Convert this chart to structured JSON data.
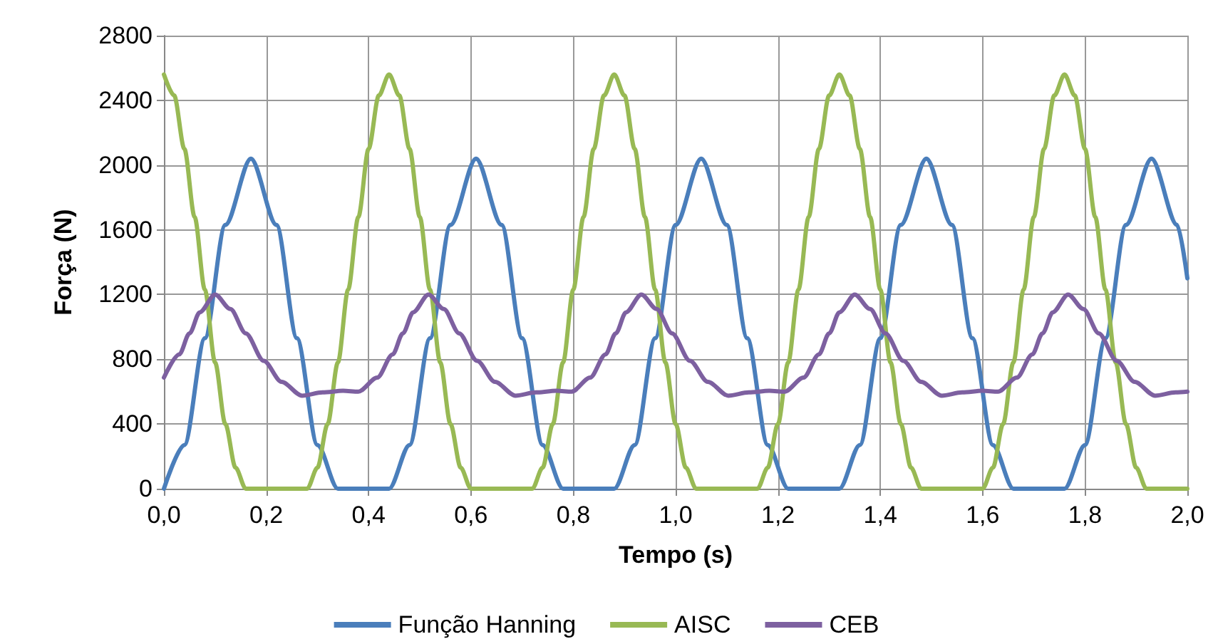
{
  "chart_data": {
    "type": "line",
    "xlabel": "Tempo (s)",
    "ylabel": "Força (N)",
    "xlim": [
      0,
      2
    ],
    "xticks": [
      {
        "value": 0,
        "label": "0,0"
      },
      {
        "value": 0.2,
        "label": "0,2"
      },
      {
        "value": 0.4,
        "label": "0,4"
      },
      {
        "value": 0.6,
        "label": "0,6"
      },
      {
        "value": 0.8,
        "label": "0,8"
      },
      {
        "value": 1,
        "label": "1,0"
      },
      {
        "value": 1.2,
        "label": "1,2"
      },
      {
        "value": 1.4,
        "label": "1,4"
      },
      {
        "value": 1.6,
        "label": "1,6"
      },
      {
        "value": 1.8,
        "label": "1,8"
      },
      {
        "value": 2,
        "label": "2,0"
      }
    ],
    "ylim": [
      0,
      2800
    ],
    "yticks": [
      0,
      400,
      800,
      1200,
      1600,
      2000,
      2400,
      2800
    ],
    "grid": true,
    "legend": "bottom",
    "marker": "none",
    "line_style": "solid",
    "series": [
      {
        "name": "Função Hanning",
        "color": "#4a7ebb",
        "x": [
          0,
          0.04,
          0.08,
          0.12,
          0.17,
          0.22,
          0.26,
          0.3,
          0.34,
          0.44,
          0.48,
          0.52,
          0.56,
          0.61,
          0.66,
          0.7,
          0.74,
          0.78,
          0.88,
          0.92,
          0.96,
          1,
          1.05,
          1.1,
          1.14,
          1.18,
          1.22,
          1.32,
          1.36,
          1.4,
          1.44,
          1.49,
          1.54,
          1.58,
          1.62,
          1.66,
          1.76,
          1.8,
          1.84,
          1.88,
          1.93,
          1.98,
          2
        ],
        "values": [
          0,
          270,
          930,
          1630,
          2040,
          1630,
          930,
          270,
          0,
          0,
          270,
          930,
          1630,
          2040,
          1630,
          930,
          270,
          0,
          0,
          270,
          930,
          1630,
          2040,
          1630,
          930,
          270,
          0,
          0,
          270,
          930,
          1630,
          2040,
          1630,
          930,
          270,
          0,
          0,
          270,
          930,
          1630,
          2040,
          1630,
          1300
        ]
      },
      {
        "name": "AISC",
        "color": "#98b954",
        "x": [
          0,
          0.02,
          0.04,
          0.06,
          0.08,
          0.1,
          0.12,
          0.14,
          0.16,
          0.28,
          0.3,
          0.32,
          0.34,
          0.36,
          0.38,
          0.4,
          0.42,
          0.44,
          0.46,
          0.48,
          0.5,
          0.52,
          0.54,
          0.56,
          0.58,
          0.6,
          0.72,
          0.74,
          0.76,
          0.78,
          0.8,
          0.82,
          0.84,
          0.86,
          0.88,
          0.9,
          0.92,
          0.94,
          0.96,
          0.98,
          1,
          1.02,
          1.04,
          1.16,
          1.18,
          1.2,
          1.22,
          1.24,
          1.26,
          1.28,
          1.3,
          1.32,
          1.34,
          1.36,
          1.38,
          1.4,
          1.42,
          1.44,
          1.46,
          1.48,
          1.6,
          1.62,
          1.64,
          1.66,
          1.68,
          1.7,
          1.72,
          1.74,
          1.76,
          1.78,
          1.8,
          1.82,
          1.84,
          1.86,
          1.88,
          1.9,
          1.92,
          2
        ],
        "values": [
          2560,
          2430,
          2100,
          1680,
          1230,
          780,
          400,
          130,
          0,
          0,
          130,
          400,
          780,
          1230,
          1680,
          2100,
          2430,
          2560,
          2430,
          2100,
          1680,
          1230,
          780,
          400,
          130,
          0,
          0,
          130,
          400,
          780,
          1230,
          1680,
          2100,
          2430,
          2560,
          2430,
          2100,
          1680,
          1230,
          780,
          400,
          130,
          0,
          0,
          130,
          400,
          780,
          1230,
          1680,
          2100,
          2430,
          2560,
          2430,
          2100,
          1680,
          1230,
          780,
          400,
          130,
          0,
          0,
          130,
          400,
          780,
          1230,
          1680,
          2100,
          2430,
          2560,
          2430,
          2100,
          1680,
          1230,
          780,
          400,
          130,
          0,
          0
        ]
      },
      {
        "name": "CEB",
        "color": "#7d60a0",
        "x": [
          0,
          0.03,
          0.05,
          0.07,
          0.1,
          0.13,
          0.16,
          0.195,
          0.23,
          0.27,
          0.31,
          0.35,
          0.38,
          0.417,
          0.447,
          0.467,
          0.487,
          0.517,
          0.547,
          0.577,
          0.612,
          0.647,
          0.687,
          0.727,
          0.767,
          0.797,
          0.833,
          0.863,
          0.883,
          0.903,
          0.933,
          0.963,
          0.993,
          1.028,
          1.063,
          1.103,
          1.143,
          1.183,
          1.213,
          1.25,
          1.28,
          1.3,
          1.32,
          1.35,
          1.38,
          1.41,
          1.445,
          1.48,
          1.52,
          1.56,
          1.6,
          1.63,
          1.667,
          1.697,
          1.717,
          1.737,
          1.767,
          1.797,
          1.827,
          1.862,
          1.897,
          1.937,
          1.977,
          2
        ],
        "values": [
          687,
          830,
          960,
          1090,
          1200,
          1110,
          960,
          790,
          660,
          575,
          595,
          605,
          600,
          687,
          830,
          960,
          1090,
          1200,
          1110,
          960,
          790,
          660,
          575,
          595,
          605,
          600,
          687,
          830,
          960,
          1090,
          1200,
          1110,
          960,
          790,
          660,
          575,
          595,
          605,
          600,
          687,
          830,
          960,
          1090,
          1200,
          1110,
          960,
          790,
          660,
          575,
          595,
          605,
          600,
          687,
          830,
          960,
          1090,
          1200,
          1110,
          960,
          790,
          660,
          575,
          595,
          600
        ]
      }
    ]
  }
}
